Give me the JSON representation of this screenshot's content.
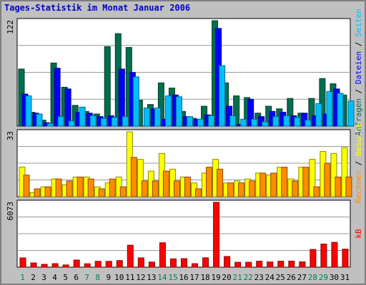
{
  "title": "Tages-Statistik im Monat Januar 2006",
  "colors": {
    "background": "#c0c0c0",
    "plot_background": "#ffffff",
    "anfragen": "#006f4f",
    "dateien": "#0000ff",
    "seiten": "#00bfff",
    "besuche": "#ffff00",
    "rechner": "#ff8c00",
    "kb": "#ff0000",
    "title_text": "#0000cc",
    "weekend_day": "#007f4f"
  },
  "chart_data": [
    {
      "type": "bar",
      "panel": "top",
      "title": "",
      "ymax_label": "122",
      "ylim": [
        0,
        122
      ],
      "right_label": {
        "parts": [
          "Anfragen",
          "Dateien",
          "Seiten"
        ],
        "separator": " / "
      },
      "categories": [
        "1",
        "2",
        "3",
        "4",
        "5",
        "6",
        "7",
        "8",
        "9",
        "10",
        "11",
        "12",
        "13",
        "14",
        "15",
        "16",
        "17",
        "18",
        "19",
        "20",
        "21",
        "22",
        "23",
        "24",
        "25",
        "26",
        "27",
        "28",
        "29",
        "30",
        "31"
      ],
      "series": [
        {
          "name": "Anfragen",
          "color": "#006f4f",
          "values": [
            66,
            16,
            7,
            73,
            45,
            24,
            17,
            14,
            92,
            107,
            91,
            30,
            25,
            50,
            44,
            17,
            9,
            23,
            122,
            50,
            35,
            33,
            15,
            23,
            20,
            32,
            15,
            32,
            55,
            49,
            36
          ]
        },
        {
          "name": "Dateien",
          "color": "#0000ff",
          "values": [
            37,
            15,
            4,
            67,
            43,
            16,
            15,
            11,
            12,
            66,
            62,
            0,
            20,
            8,
            36,
            11,
            8,
            13,
            113,
            23,
            2,
            31,
            11,
            17,
            16,
            12,
            15,
            12,
            14,
            43,
            0
          ]
        },
        {
          "name": "Seiten",
          "color": "#00bfff",
          "values": [
            35,
            14,
            3,
            11,
            6,
            22,
            12,
            9,
            10,
            11,
            57,
            21,
            21,
            35,
            34,
            11,
            8,
            12,
            70,
            12,
            8,
            8,
            5,
            11,
            12,
            10,
            7,
            26,
            40,
            38,
            29
          ]
        }
      ]
    },
    {
      "type": "bar",
      "panel": "middle",
      "title": "",
      "ymax_label": "33",
      "ylim": [
        0,
        33
      ],
      "right_label": {
        "parts": [
          "Rechner",
          "Besuche"
        ],
        "separator": " / "
      },
      "categories": [
        "1",
        "2",
        "3",
        "4",
        "5",
        "6",
        "7",
        "8",
        "9",
        "10",
        "11",
        "12",
        "13",
        "14",
        "15",
        "16",
        "17",
        "18",
        "19",
        "20",
        "21",
        "22",
        "23",
        "24",
        "25",
        "26",
        "27",
        "28",
        "29",
        "30",
        "31"
      ],
      "series": [
        {
          "name": "Besuche",
          "color": "#ffff00",
          "values": [
            15,
            2,
            5,
            9,
            6,
            10,
            10,
            5,
            7,
            10,
            33,
            19,
            13,
            22,
            14,
            10,
            7,
            12,
            19,
            7,
            8,
            9,
            12,
            11,
            15,
            9,
            15,
            19,
            23,
            22,
            25
          ]
        },
        {
          "name": "Rechner",
          "color": "#ff8c00",
          "values": [
            11,
            4,
            5,
            9,
            8,
            10,
            9,
            4,
            9,
            5,
            20,
            8,
            8,
            13,
            8,
            10,
            4,
            15,
            14,
            7,
            7,
            8,
            12,
            12,
            15,
            8,
            15,
            5,
            17,
            10,
            10
          ]
        }
      ]
    },
    {
      "type": "bar",
      "panel": "bottom",
      "title": "",
      "ymax_label": "6073",
      "ylim": [
        0,
        6073
      ],
      "right_label": {
        "parts": [
          "kB"
        ],
        "separator": ""
      },
      "categories": [
        "1",
        "2",
        "3",
        "4",
        "5",
        "6",
        "7",
        "8",
        "9",
        "10",
        "11",
        "12",
        "13",
        "14",
        "15",
        "16",
        "17",
        "18",
        "19",
        "20",
        "21",
        "22",
        "23",
        "24",
        "25",
        "26",
        "27",
        "28",
        "29",
        "30",
        "31"
      ],
      "series": [
        {
          "name": "kB",
          "color": "#ff0000",
          "values": [
            870,
            400,
            270,
            330,
            210,
            670,
            320,
            550,
            550,
            620,
            2060,
            870,
            480,
            2290,
            780,
            800,
            330,
            880,
            6073,
            1000,
            460,
            460,
            560,
            490,
            560,
            570,
            500,
            1660,
            2170,
            2330,
            1690
          ]
        }
      ]
    }
  ],
  "weekend_days": [
    "1",
    "7",
    "8",
    "14",
    "15",
    "21",
    "22",
    "28",
    "29"
  ]
}
